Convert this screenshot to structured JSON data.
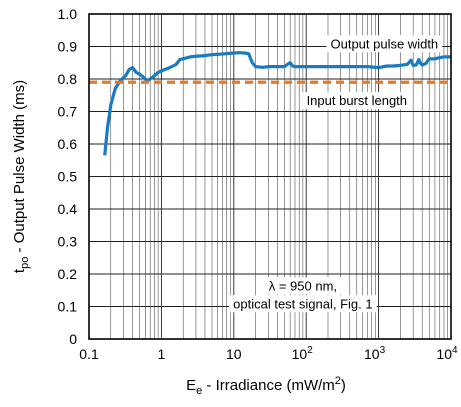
{
  "chart_data": {
    "type": "line",
    "xscale": "log",
    "xlim": [
      0.1,
      10000
    ],
    "ylim": [
      0,
      1.0
    ],
    "xlabel": {
      "main": "E",
      "sub": "e",
      "rest": " - Irradiance (mW/m",
      "sup": "2",
      "end": ")"
    },
    "ylabel": {
      "main": "t",
      "sub": "po",
      "rest": " - Output Pulse Width (ms)"
    },
    "x_ticks": [
      {
        "value": 0.1,
        "label": "0.1"
      },
      {
        "value": 1,
        "label": "1"
      },
      {
        "value": 10,
        "label": "10"
      },
      {
        "value": 100,
        "base": "10",
        "exp": "2"
      },
      {
        "value": 1000,
        "base": "10",
        "exp": "3"
      },
      {
        "value": 10000,
        "base": "10",
        "exp": "4"
      }
    ],
    "y_ticks": [
      {
        "value": 0,
        "label": "0"
      },
      {
        "value": 0.1,
        "label": "0.1"
      },
      {
        "value": 0.2,
        "label": "0.2"
      },
      {
        "value": 0.3,
        "label": "0.3"
      },
      {
        "value": 0.4,
        "label": "0.4"
      },
      {
        "value": 0.5,
        "label": "0.5"
      },
      {
        "value": 0.6,
        "label": "0.6"
      },
      {
        "value": 0.7,
        "label": "0.7"
      },
      {
        "value": 0.8,
        "label": "0.8"
      },
      {
        "value": 0.9,
        "label": "0.9"
      },
      {
        "value": 1.0,
        "label": "1.0"
      }
    ],
    "grid": true,
    "series": [
      {
        "name": "Output pulse width",
        "color": "#1a7ac4",
        "style": "solid",
        "x": [
          0.165,
          0.18,
          0.2,
          0.23,
          0.27,
          0.32,
          0.36,
          0.4,
          0.45,
          0.5,
          0.55,
          0.6,
          0.65,
          0.7,
          0.75,
          0.8,
          0.9,
          1.0,
          1.3,
          1.6,
          1.8,
          2.0,
          2.5,
          3.0,
          4.0,
          5.0,
          6.0,
          8.0,
          10.0,
          12.0,
          14.0,
          16.0,
          18.0,
          20.0,
          25.0,
          30.0,
          40.0,
          50.0,
          55.0,
          60.0,
          65.0,
          70.0,
          100.0,
          150.0,
          200.0,
          300.0,
          500.0,
          700.0,
          1000.0,
          1300.0,
          1600.0,
          2000.0,
          2500.0,
          2800.0,
          3000.0,
          3300.0,
          3600.0,
          3800.0,
          4000.0,
          4500.0,
          5000.0,
          6000.0,
          7000.0,
          8000.0,
          10000.0
        ],
        "values": [
          0.565,
          0.65,
          0.72,
          0.77,
          0.795,
          0.81,
          0.83,
          0.835,
          0.82,
          0.815,
          0.808,
          0.8,
          0.795,
          0.8,
          0.805,
          0.81,
          0.82,
          0.825,
          0.835,
          0.845,
          0.86,
          0.862,
          0.868,
          0.87,
          0.872,
          0.875,
          0.876,
          0.878,
          0.88,
          0.881,
          0.88,
          0.878,
          0.85,
          0.838,
          0.836,
          0.838,
          0.838,
          0.838,
          0.845,
          0.85,
          0.84,
          0.838,
          0.838,
          0.838,
          0.838,
          0.838,
          0.838,
          0.838,
          0.835,
          0.84,
          0.84,
          0.842,
          0.845,
          0.858,
          0.842,
          0.843,
          0.86,
          0.848,
          0.843,
          0.848,
          0.862,
          0.862,
          0.866,
          0.868,
          0.868
        ]
      },
      {
        "name": "Input burst length",
        "color": "#e8792a",
        "style": "dashed",
        "x": [
          0.1,
          10000
        ],
        "values": [
          0.79,
          0.79
        ]
      }
    ],
    "annotations": [
      {
        "name": "output-pulse-width-label",
        "text": "Output pulse width",
        "x": 1200,
        "y": 0.91
      },
      {
        "name": "input-burst-length-label",
        "text": "Input burst length",
        "x": 500,
        "y": 0.735
      }
    ],
    "note": {
      "line1": "λ = 950 nm,",
      "line2": "optical test signal, Fig. 1",
      "x": 90,
      "y1": 0.165,
      "y2": 0.11
    }
  }
}
